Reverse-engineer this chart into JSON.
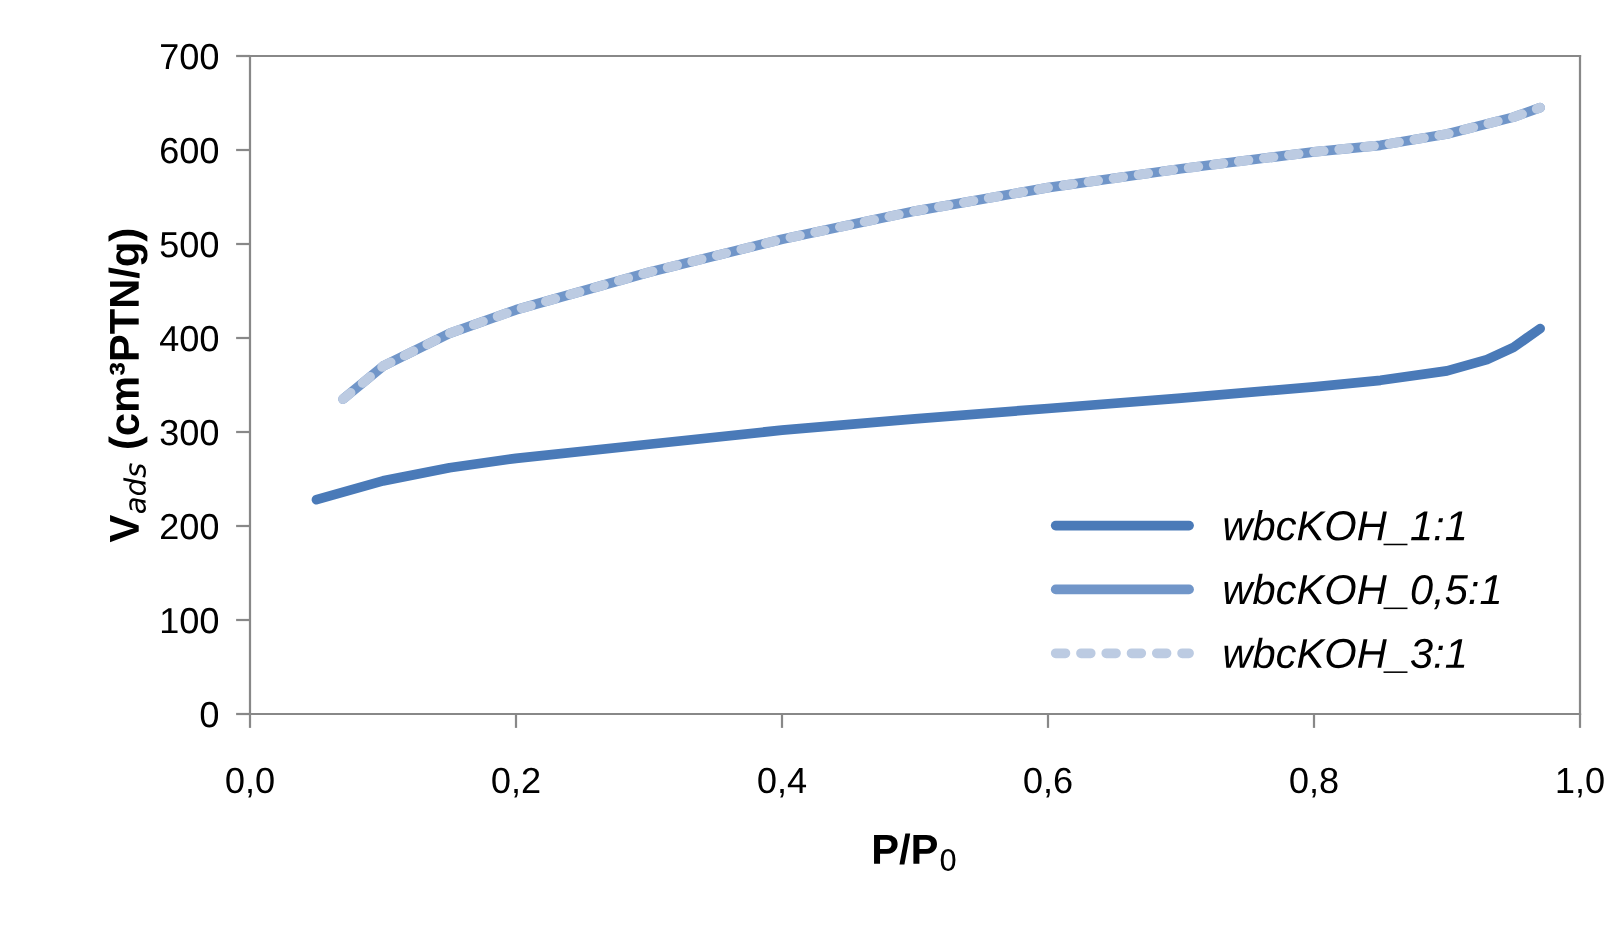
{
  "chart_data": {
    "type": "line",
    "xlabel": "P/P$_{0}$",
    "ylabel": "V$_{ads}$ (cm³PTN/g)",
    "xlim": [
      0,
      1
    ],
    "xticks": [
      {
        "value": 0,
        "label": "0,0"
      },
      {
        "value": 0.2,
        "label": "0,2"
      },
      {
        "value": 0.4,
        "label": "0,4"
      },
      {
        "value": 0.6,
        "label": "0,6"
      },
      {
        "value": 0.8,
        "label": "0,8"
      },
      {
        "value": 1,
        "label": "1,0"
      }
    ],
    "ylim": [
      0,
      700
    ],
    "yticks": [
      0,
      100,
      200,
      300,
      400,
      500,
      600,
      700
    ],
    "grid": false,
    "legend": "bottom right",
    "series": [
      {
        "name": "wbcKOH_1:1",
        "color": "#4a7ab8",
        "line_style": "solid",
        "x": [
          0.05,
          0.1,
          0.15,
          0.2,
          0.3,
          0.4,
          0.5,
          0.6,
          0.7,
          0.8,
          0.85,
          0.9,
          0.93,
          0.95,
          0.97
        ],
        "values": [
          228,
          248,
          262,
          272,
          287,
          302,
          314,
          325,
          336,
          348,
          355,
          365,
          377,
          390,
          410
        ]
      },
      {
        "name": "wbcKOH_0,5:1",
        "color": "#7196c9",
        "line_style": "solid",
        "x": [
          0.07,
          0.1,
          0.15,
          0.2,
          0.3,
          0.4,
          0.5,
          0.6,
          0.7,
          0.8,
          0.85,
          0.9,
          0.95,
          0.97
        ],
        "values": [
          335,
          370,
          405,
          430,
          470,
          505,
          535,
          560,
          580,
          598,
          605,
          617,
          635,
          645
        ]
      },
      {
        "name": "wbcKOH_3:1",
        "color": "#bccbe2",
        "line_style": "dotted",
        "x": [
          0.07,
          0.1,
          0.15,
          0.2,
          0.3,
          0.4,
          0.5,
          0.6,
          0.7,
          0.8,
          0.85,
          0.9,
          0.95,
          0.97
        ],
        "values": [
          335,
          370,
          405,
          430,
          470,
          505,
          535,
          560,
          580,
          598,
          605,
          617,
          635,
          645
        ]
      }
    ]
  }
}
